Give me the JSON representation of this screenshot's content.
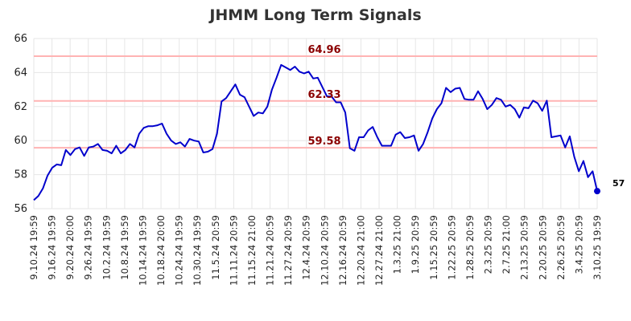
{
  "chart_data": {
    "type": "line",
    "title": "JHMM Long Term Signals",
    "ylim": [
      56,
      66
    ],
    "yticks": [
      56,
      58,
      60,
      62,
      64,
      66
    ],
    "grid": true,
    "colors": {
      "line": "#0000cc",
      "reference": "#ffb3b3",
      "reference_label": "#8b0000",
      "grid": "#e6e6e6"
    },
    "reference_lines": [
      {
        "value": 64.96,
        "label": "64.96"
      },
      {
        "value": 62.33,
        "label": "62.33"
      },
      {
        "value": 59.58,
        "label": "59.58"
      }
    ],
    "x_tick_labels": [
      "9.10.24 19:59",
      "9.16.24 19:59",
      "9.20.24 20:00",
      "9.26.24 19:59",
      "10.2.24 19:59",
      "10.8.24 19:59",
      "10.14.24 19:59",
      "10.18.24 20:00",
      "10.24.24 19:59",
      "10.30.24 19:59",
      "11.5.24 20:59",
      "11.11.24 20:59",
      "11.15.24 21:00",
      "11.21.24 20:59",
      "11.27.24 20:59",
      "12.4.24 20:59",
      "12.10.24 20:59",
      "12.16.24 20:59",
      "12.20.24 21:00",
      "12.27.24 21:00",
      "1.3.25 21:00",
      "1.9.25 20:59",
      "1.15.25 20:59",
      "1.22.25 20:59",
      "1.28.25 20:59",
      "2.3.25 20:59",
      "2.7.25 21:00",
      "2.13.25 20:59",
      "2.20.25 20:59",
      "2.26.25 20:59",
      "3.4.25 20:59",
      "3.10.25 19:59"
    ],
    "values": [
      56.5,
      56.75,
      57.2,
      57.95,
      58.4,
      58.6,
      58.55,
      59.45,
      59.15,
      59.5,
      59.6,
      59.1,
      59.6,
      59.65,
      59.8,
      59.45,
      59.4,
      59.25,
      59.7,
      59.25,
      59.45,
      59.8,
      59.6,
      60.4,
      60.75,
      60.85,
      60.85,
      60.9,
      61.0,
      60.4,
      60.0,
      59.8,
      59.9,
      59.65,
      60.1,
      60.0,
      59.95,
      59.3,
      59.35,
      59.5,
      60.4,
      62.3,
      62.5,
      62.9,
      63.3,
      62.7,
      62.55,
      62.0,
      61.45,
      61.65,
      61.6,
      62.0,
      63.0,
      63.7,
      64.45,
      64.3,
      64.15,
      64.35,
      64.05,
      63.95,
      64.05,
      63.65,
      63.7,
      63.15,
      62.6,
      62.6,
      62.25,
      62.25,
      61.65,
      59.55,
      59.4,
      60.2,
      60.2,
      60.6,
      60.8,
      60.2,
      59.7,
      59.7,
      59.7,
      60.35,
      60.5,
      60.15,
      60.2,
      60.3,
      59.4,
      59.8,
      60.5,
      61.3,
      61.85,
      62.2,
      63.1,
      62.85,
      63.05,
      63.1,
      62.45,
      62.4,
      62.4,
      62.9,
      62.45,
      61.85,
      62.1,
      62.5,
      62.4,
      62.0,
      62.1,
      61.85,
      61.35,
      61.95,
      61.9,
      62.35,
      62.2,
      61.75,
      62.35,
      60.2,
      60.25,
      60.3,
      59.6,
      60.25,
      59.05,
      58.2,
      58.8,
      57.85,
      58.2,
      57.03
    ],
    "last_value_label": "57"
  }
}
